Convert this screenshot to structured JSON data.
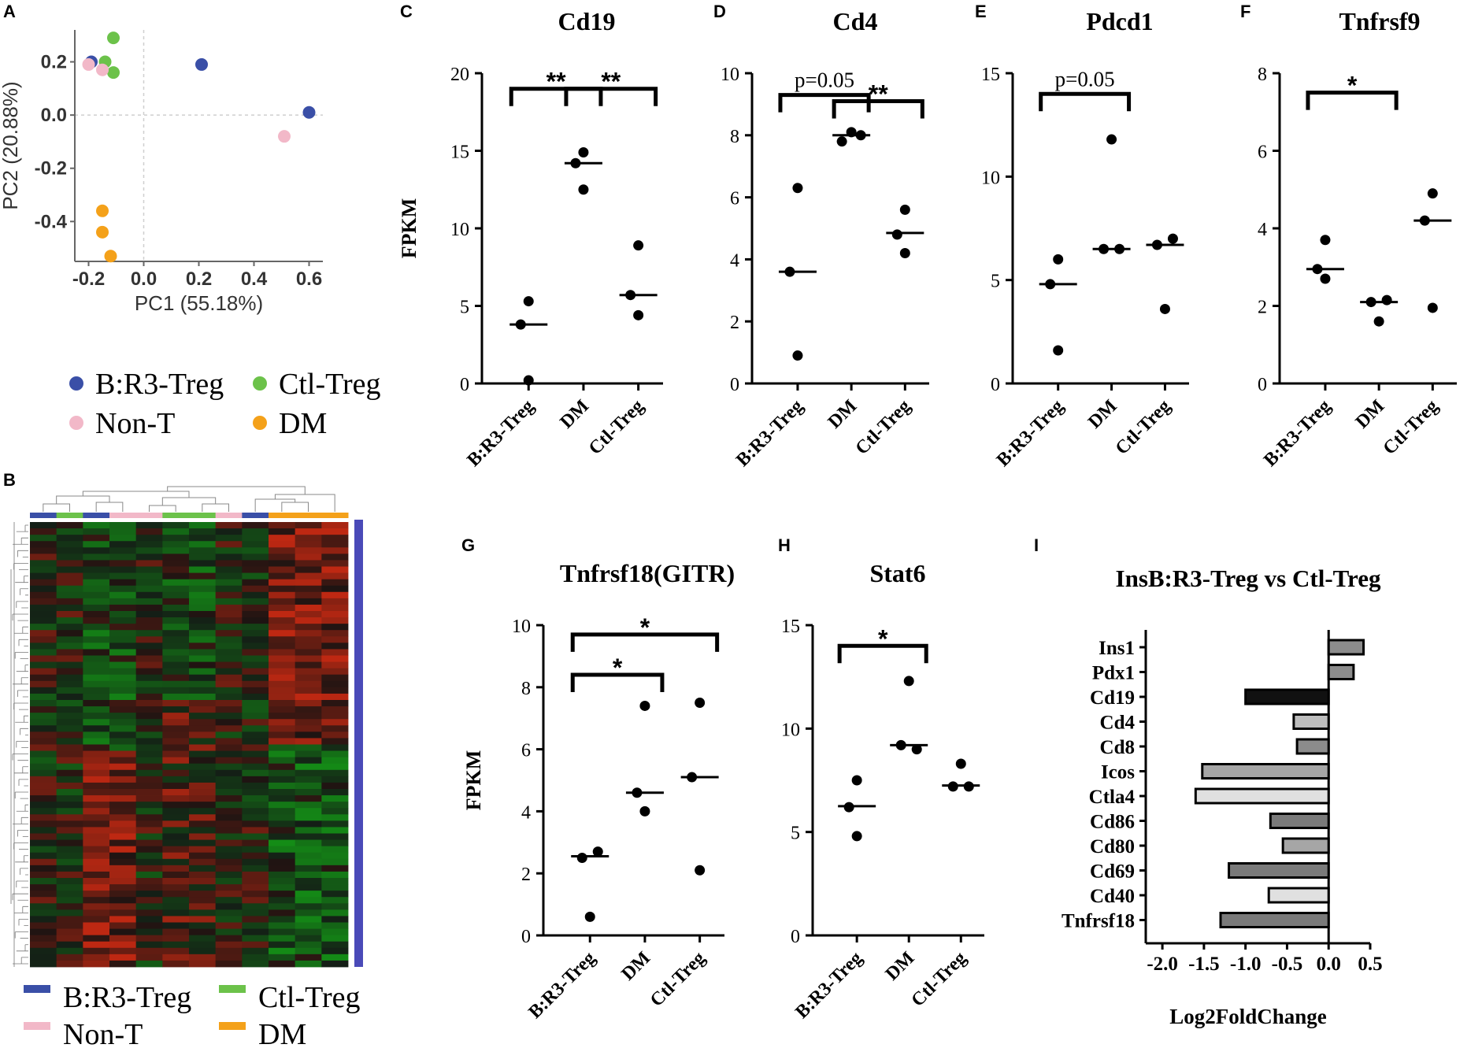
{
  "colors": {
    "breg": "#3a4fa7",
    "ctl": "#6cc24a",
    "nont": "#f2b8c8",
    "dm": "#f4a11a",
    "heat_side": "#4a4ab8"
  },
  "panel_labels": [
    "A",
    "B",
    "C",
    "D",
    "E",
    "F",
    "G",
    "H",
    "I"
  ],
  "chart_data": [
    {
      "id": "A",
      "type": "scatter",
      "xlabel": "PC1 (55.18%)",
      "ylabel": "PC2 (20.88%)",
      "xlim": [
        -0.25,
        0.65
      ],
      "ylim": [
        -0.55,
        0.32
      ],
      "xticks": [
        "-0.2",
        "0.0",
        "0.2",
        "0.4",
        "0.6"
      ],
      "xtick_values": [
        -0.2,
        0.0,
        0.2,
        0.4,
        0.6
      ],
      "yticks": [
        "0.2",
        "0.0",
        "-0.2",
        "-0.4"
      ],
      "ytick_values": [
        0.2,
        0.0,
        -0.2,
        -0.4
      ],
      "series": [
        {
          "name": "B:R3-Treg",
          "color": "breg",
          "points": [
            [
              -0.19,
              0.2
            ],
            [
              0.21,
              0.19
            ],
            [
              0.6,
              0.01
            ]
          ]
        },
        {
          "name": "Ctl-Treg",
          "color": "ctl",
          "points": [
            [
              -0.11,
              0.29
            ],
            [
              -0.14,
              0.2
            ],
            [
              -0.11,
              0.16
            ]
          ]
        },
        {
          "name": "Non-T",
          "color": "nont",
          "points": [
            [
              -0.2,
              0.19
            ],
            [
              -0.15,
              0.17
            ],
            [
              0.51,
              -0.08
            ]
          ]
        },
        {
          "name": "DM",
          "color": "dm",
          "points": [
            [
              -0.15,
              -0.36
            ],
            [
              -0.15,
              -0.44
            ],
            [
              -0.12,
              -0.53
            ]
          ]
        }
      ],
      "legend": [
        {
          "label": "B:R3-Treg",
          "color": "breg"
        },
        {
          "label": "Ctl-Treg",
          "color": "ctl"
        },
        {
          "label": "Non-T",
          "color": "nont"
        },
        {
          "label": "DM",
          "color": "dm"
        }
      ]
    },
    {
      "id": "B",
      "type": "heatmap",
      "top_bar": [
        "breg",
        "ctl",
        "breg",
        "nont",
        "nont",
        "ctl",
        "ctl",
        "nont",
        "breg",
        "dm",
        "dm",
        "dm"
      ],
      "legend": [
        {
          "label": "B:R3-Treg",
          "color": "breg"
        },
        {
          "label": "Ctl-Treg",
          "color": "ctl"
        },
        {
          "label": "Non-T",
          "color": "nont"
        },
        {
          "label": "DM",
          "color": "dm"
        }
      ]
    },
    {
      "id": "C",
      "type": "scatter",
      "title": "Cd19",
      "ylabel": "FPKM",
      "ylim": [
        0,
        20
      ],
      "yticks": [
        0,
        5,
        10,
        15,
        20
      ],
      "categories": [
        "B:R3-Treg",
        "DM",
        "Ctl-Treg"
      ],
      "points": [
        [
          0.2,
          3.8,
          5.3
        ],
        [
          12.5,
          14.2,
          14.9
        ],
        [
          4.4,
          5.7,
          8.9
        ]
      ],
      "medians": [
        3.8,
        14.2,
        5.7
      ],
      "brackets": [
        {
          "from": 0,
          "to": 1,
          "y": 19.0,
          "text": "**"
        },
        {
          "from": 1,
          "to": 2,
          "y": 19.0,
          "text": "**"
        }
      ]
    },
    {
      "id": "D",
      "type": "scatter",
      "title": "Cd4",
      "ylabel": "",
      "ylim": [
        0,
        10
      ],
      "yticks": [
        0,
        2,
        4,
        6,
        8,
        10
      ],
      "categories": [
        "B:R3-Treg",
        "DM",
        "Ctl-Treg"
      ],
      "points": [
        [
          0.9,
          3.6,
          6.3
        ],
        [
          7.8,
          8.1,
          8.0
        ],
        [
          4.2,
          4.8,
          5.6
        ]
      ],
      "medians": [
        3.6,
        8.0,
        4.85
      ],
      "brackets": [
        {
          "from": 0,
          "to": 1,
          "y": 9.3,
          "text": "p=0.05"
        },
        {
          "from": 1,
          "to": 2,
          "y": 9.1,
          "text": "**"
        }
      ]
    },
    {
      "id": "E",
      "type": "scatter",
      "title": "Pdcd1",
      "ylabel": "",
      "ylim": [
        0,
        15
      ],
      "yticks": [
        0,
        5,
        10,
        15
      ],
      "categories": [
        "B:R3-Treg",
        "DM",
        "Ctl-Treg"
      ],
      "points": [
        [
          1.6,
          4.8,
          6.0
        ],
        [
          6.5,
          6.5,
          11.8
        ],
        [
          3.6,
          6.7,
          7.0
        ]
      ],
      "medians": [
        4.8,
        6.5,
        6.7
      ],
      "brackets": [
        {
          "from": 0,
          "to": 1,
          "y": 14.0,
          "text": "p=0.05"
        }
      ]
    },
    {
      "id": "F",
      "type": "scatter",
      "title": "Tnfrsf9",
      "ylabel": "",
      "ylim": [
        0,
        8
      ],
      "yticks": [
        0,
        2,
        4,
        6,
        8
      ],
      "categories": [
        "B:R3-Treg",
        "DM",
        "Ctl-Treg"
      ],
      "points": [
        [
          2.7,
          2.95,
          3.7
        ],
        [
          1.6,
          2.1,
          2.15
        ],
        [
          1.95,
          4.2,
          4.9
        ]
      ],
      "medians": [
        2.95,
        2.1,
        4.2
      ],
      "brackets": [
        {
          "from": 0,
          "to": 1,
          "y": 7.5,
          "text": "*"
        }
      ]
    },
    {
      "id": "G",
      "type": "scatter",
      "title": "Tnfrsf18(GITR)",
      "ylabel": "FPKM",
      "ylim": [
        0,
        10
      ],
      "yticks": [
        0,
        2,
        4,
        6,
        8,
        10
      ],
      "categories": [
        "B:R3-Treg",
        "DM",
        "Ctl-Treg"
      ],
      "points": [
        [
          0.6,
          2.5,
          2.7
        ],
        [
          4.0,
          4.6,
          7.4
        ],
        [
          2.1,
          5.1,
          7.5
        ]
      ],
      "medians": [
        2.55,
        4.6,
        5.1
      ],
      "brackets": [
        {
          "from": 0,
          "to": 1,
          "y": 8.4,
          "text": "*"
        },
        {
          "from": 0,
          "to": 2,
          "y": 9.7,
          "text": "*"
        }
      ]
    },
    {
      "id": "H",
      "type": "scatter",
      "title": "Stat6",
      "ylabel": "",
      "ylim": [
        0,
        15
      ],
      "yticks": [
        0,
        5,
        10,
        15
      ],
      "categories": [
        "B:R3-Treg",
        "DM",
        "Ctl-Treg"
      ],
      "points": [
        [
          4.8,
          6.2,
          7.5
        ],
        [
          9.0,
          9.2,
          12.3
        ],
        [
          7.2,
          7.2,
          8.3
        ]
      ],
      "medians": [
        6.25,
        9.2,
        7.25
      ],
      "brackets": [
        {
          "from": 0,
          "to": 1,
          "y": 14.0,
          "text": "*"
        }
      ]
    },
    {
      "id": "I",
      "type": "bar",
      "title": "InsB:R3-Treg vs Ctl-Treg",
      "xlabel": "Log2FoldChange",
      "xlim": [
        -2.2,
        0.5
      ],
      "xticks": [
        "-2.0",
        "-1.5",
        "-1.0",
        "-0.5",
        "0.0",
        "0.5"
      ],
      "xtick_values": [
        -2.0,
        -1.5,
        -1.0,
        -0.5,
        0.0,
        0.5
      ],
      "categories": [
        "Ins1",
        "Pdx1",
        "Cd19",
        "Cd4",
        "Cd8",
        "Icos",
        "Ctla4",
        "Cd86",
        "Cd80",
        "Cd69",
        "Cd40",
        "Tnfrsf18"
      ],
      "values": [
        0.42,
        0.3,
        -1.0,
        -0.42,
        -0.38,
        -1.52,
        -1.6,
        -0.7,
        -0.55,
        -1.2,
        -0.72,
        -1.3
      ],
      "fills": [
        "#8c8c8c",
        "#8c8c8c",
        "#111111",
        "#bdbdbd",
        "#8c8c8c",
        "#a6a6a6",
        "#e0e0e0",
        "#7a7a7a",
        "#a6a6a6",
        "#7a7a7a",
        "#e0e0e0",
        "#7a7a7a"
      ]
    }
  ]
}
